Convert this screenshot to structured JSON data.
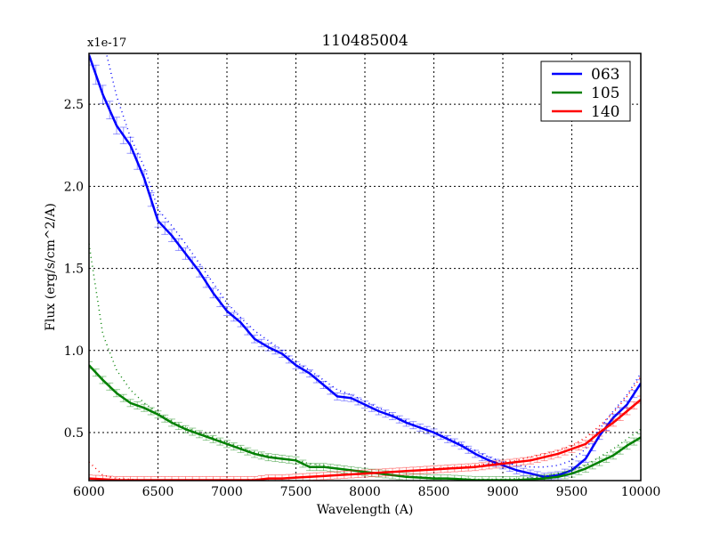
{
  "chart_data": {
    "type": "line",
    "title": "110485004",
    "xlabel": "Wavelength (A)",
    "ylabel": "Flux (erg/s/cm^2/A)",
    "y_offset_label": "x1e-17",
    "xlim": [
      6000,
      10000
    ],
    "ylim": [
      0.207,
      2.81
    ],
    "xticks": [
      6000,
      6500,
      7000,
      7500,
      8000,
      8500,
      9000,
      9500,
      10000
    ],
    "yticks": [
      0.5,
      1.0,
      1.5,
      2.0,
      2.5
    ],
    "ytick_labels": [
      "0.5",
      "1.0",
      "1.5",
      "2.0",
      "2.5"
    ],
    "grid": true,
    "legend_position": "upper right",
    "x": [
      6000,
      6100,
      6200,
      6300,
      6400,
      6500,
      6600,
      6700,
      6800,
      6900,
      7000,
      7100,
      7200,
      7300,
      7400,
      7500,
      7600,
      7700,
      7800,
      7900,
      8000,
      8100,
      8200,
      8300,
      8400,
      8500,
      8600,
      8700,
      8800,
      8900,
      9000,
      9100,
      9200,
      9300,
      9400,
      9500,
      9600,
      9700,
      9800,
      9900,
      10000
    ],
    "series": [
      {
        "name": "063",
        "color": "#0000ff",
        "values": [
          2.8,
          2.56,
          2.37,
          2.25,
          2.05,
          1.79,
          1.7,
          1.59,
          1.48,
          1.35,
          1.24,
          1.17,
          1.07,
          1.02,
          0.98,
          0.91,
          0.86,
          0.79,
          0.72,
          0.71,
          0.67,
          0.63,
          0.6,
          0.56,
          0.53,
          0.5,
          0.46,
          0.42,
          0.37,
          0.33,
          0.3,
          0.27,
          0.25,
          0.23,
          0.24,
          0.27,
          0.34,
          0.48,
          0.59,
          0.67,
          0.8
        ],
        "model": [
          3.3,
          2.9,
          2.55,
          2.3,
          2.12,
          1.86,
          1.76,
          1.65,
          1.53,
          1.41,
          1.29,
          1.2,
          1.12,
          1.06,
          1.0,
          0.93,
          0.88,
          0.82,
          0.76,
          0.73,
          0.69,
          0.65,
          0.61,
          0.57,
          0.53,
          0.5,
          0.47,
          0.43,
          0.39,
          0.35,
          0.32,
          0.3,
          0.29,
          0.29,
          0.3,
          0.33,
          0.4,
          0.52,
          0.63,
          0.73,
          0.86
        ]
      },
      {
        "name": "105",
        "color": "#008000",
        "values": [
          0.91,
          0.82,
          0.74,
          0.68,
          0.65,
          0.61,
          0.56,
          0.52,
          0.49,
          0.46,
          0.43,
          0.4,
          0.37,
          0.35,
          0.34,
          0.33,
          0.29,
          0.29,
          0.28,
          0.27,
          0.26,
          0.25,
          0.24,
          0.23,
          0.225,
          0.22,
          0.22,
          0.215,
          0.21,
          0.21,
          0.21,
          0.21,
          0.215,
          0.22,
          0.23,
          0.25,
          0.28,
          0.32,
          0.36,
          0.42,
          0.47
        ],
        "model": [
          1.65,
          1.1,
          0.88,
          0.76,
          0.68,
          0.62,
          0.57,
          0.53,
          0.5,
          0.47,
          0.44,
          0.41,
          0.38,
          0.36,
          0.34,
          0.33,
          0.31,
          0.3,
          0.28,
          0.27,
          0.26,
          0.25,
          0.24,
          0.235,
          0.23,
          0.225,
          0.22,
          0.22,
          0.215,
          0.215,
          0.215,
          0.22,
          0.225,
          0.23,
          0.25,
          0.27,
          0.3,
          0.35,
          0.4,
          0.46,
          0.52
        ]
      },
      {
        "name": "140",
        "color": "#ff0000",
        "values": [
          0.22,
          0.215,
          0.21,
          0.21,
          0.21,
          0.21,
          0.21,
          0.21,
          0.21,
          0.21,
          0.21,
          0.21,
          0.21,
          0.22,
          0.22,
          0.225,
          0.23,
          0.235,
          0.24,
          0.245,
          0.25,
          0.255,
          0.26,
          0.265,
          0.27,
          0.275,
          0.28,
          0.285,
          0.29,
          0.3,
          0.31,
          0.32,
          0.33,
          0.35,
          0.37,
          0.4,
          0.43,
          0.5,
          0.56,
          0.63,
          0.7
        ],
        "model": [
          0.32,
          0.24,
          0.22,
          0.215,
          0.21,
          0.21,
          0.21,
          0.21,
          0.21,
          0.21,
          0.21,
          0.21,
          0.215,
          0.22,
          0.22,
          0.225,
          0.23,
          0.235,
          0.24,
          0.245,
          0.25,
          0.255,
          0.26,
          0.265,
          0.27,
          0.28,
          0.285,
          0.29,
          0.3,
          0.31,
          0.32,
          0.33,
          0.35,
          0.37,
          0.39,
          0.42,
          0.47,
          0.54,
          0.62,
          0.72,
          0.84
        ]
      }
    ]
  }
}
